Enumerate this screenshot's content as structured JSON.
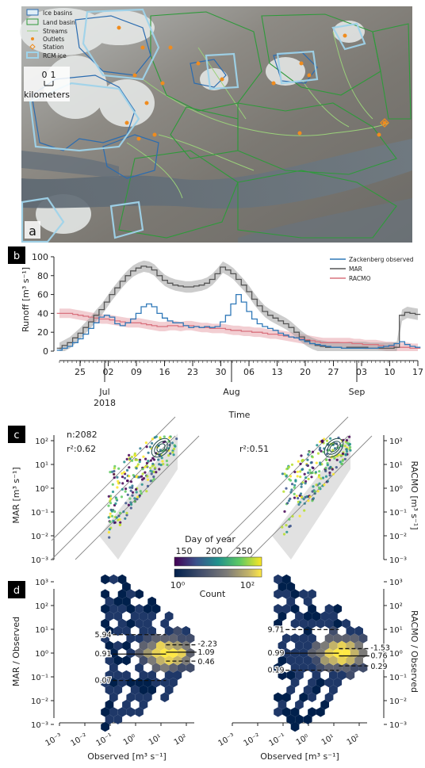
{
  "panel_labels": {
    "a": "a",
    "b": "b",
    "c": "c",
    "d": "d"
  },
  "map": {
    "legend": [
      "Ice basins",
      "Land basin",
      "Streams",
      "Outlets",
      "Station",
      "RCM ice"
    ],
    "scale_ticks": [
      "0",
      "1"
    ],
    "scale_unit": "kilometers",
    "colors": {
      "ice_basin": "#2b6cb0",
      "land_basin": "#2e9a3a",
      "stream": "#9ad07a",
      "outlet": "#f08c1e",
      "rcm_ice": "#9fd3ea"
    }
  },
  "chart_data": [
    {
      "type": "line",
      "ylabel": "Runoff [m³ s⁻¹]",
      "xlabel": "Time",
      "ylim": [
        0,
        105
      ],
      "yticks": [
        "0",
        "20",
        "40",
        "60",
        "80",
        "100"
      ],
      "xticks": [
        "25",
        "02",
        "09",
        "16",
        "23",
        "30",
        "06",
        "13",
        "20",
        "27",
        "03",
        "10",
        "17"
      ],
      "months": [
        "Jul",
        "Aug",
        "Sep"
      ],
      "year": "2018",
      "legend_position": "top-right",
      "colors": {
        "zackenberg": "#2f78b8",
        "mar": "#555555",
        "racmo": "#d9737f"
      },
      "series": [
        {
          "name": "Zackenberg observed",
          "values": [
            1,
            3,
            5,
            9,
            13,
            18,
            24,
            30,
            36,
            38,
            36,
            29,
            27,
            30,
            34,
            40,
            47,
            50,
            47,
            40,
            35,
            32,
            30,
            30,
            27,
            25,
            26,
            25,
            26,
            25,
            26,
            31,
            38,
            50,
            60,
            52,
            42,
            34,
            29,
            26,
            24,
            22,
            19,
            17,
            15,
            14,
            12,
            10,
            8,
            7,
            6,
            5,
            4,
            4,
            3,
            3,
            3,
            3,
            3,
            3,
            3,
            4,
            5,
            6,
            8,
            10,
            7,
            5,
            4
          ]
        },
        {
          "name": "MAR",
          "values": [
            3,
            6,
            9,
            14,
            19,
            25,
            31,
            38,
            44,
            52,
            60,
            67,
            74,
            80,
            85,
            88,
            90,
            89,
            86,
            80,
            75,
            72,
            70,
            69,
            68,
            68,
            69,
            70,
            72,
            76,
            82,
            89,
            86,
            82,
            76,
            70,
            63,
            55,
            48,
            42,
            38,
            35,
            32,
            29,
            25,
            20,
            15,
            11,
            8,
            6,
            5,
            4,
            4,
            4,
            3,
            4,
            4,
            4,
            4,
            3,
            3,
            3,
            3,
            3,
            4,
            38,
            41,
            40,
            39
          ],
          "band": 6
        },
        {
          "name": "RACMO",
          "values": [
            40,
            40,
            40,
            39,
            38,
            37,
            36,
            35,
            34,
            34,
            33,
            32,
            31,
            30,
            30,
            30,
            29,
            28,
            27,
            26,
            26,
            27,
            27,
            26,
            27,
            27,
            26,
            25,
            25,
            24,
            24,
            24,
            23,
            22,
            22,
            21,
            21,
            20,
            20,
            19,
            18,
            18,
            17,
            16,
            15,
            14,
            13,
            12,
            11,
            10,
            9,
            9,
            9,
            9,
            9,
            9,
            8,
            8,
            7,
            7,
            7,
            6,
            5,
            5,
            4,
            4,
            4,
            3,
            3
          ],
          "band": 5
        }
      ]
    },
    {
      "type": "scatter",
      "ylabel_left": "MAR [m³ s⁻¹]",
      "ylabel_right": "RACMO [m³ s⁻¹]",
      "annotations": [
        "n:2082",
        "r²:0.62",
        "r²:0.51"
      ],
      "axis": "log",
      "xlim": [
        "1e-3",
        "1e3"
      ],
      "yticks": [
        "10²",
        "10¹",
        "10⁰",
        "10⁻¹",
        "10⁻²",
        "10⁻³"
      ],
      "colorbar": {
        "label": "Day of year",
        "ticks": [
          "150",
          "200",
          "250"
        ]
      }
    },
    {
      "type": "heatmap",
      "ylabel_left": "MAR / Observed",
      "ylabel_right": "RACMO / Observed",
      "xlabel": "Observed [m³ s⁻¹]",
      "xticks": [
        "10⁻³",
        "10⁻²",
        "10⁻¹",
        "10⁰",
        "10¹",
        "10²"
      ],
      "yticks": [
        "10³",
        "10²",
        "10¹",
        "10⁰",
        "10⁻¹",
        "10⁻²",
        "10⁻³"
      ],
      "colorbar": {
        "label": "Count",
        "ticks": [
          "10⁰",
          "10²"
        ]
      },
      "left_labels": {
        "p95": "5.94",
        "median": "0.91",
        "p5": "0.07",
        "r1": "2.23",
        "r2": "1.09",
        "r3": "0.46"
      },
      "right_labels": {
        "p95": "9.71",
        "median": "0.99",
        "p5": "0.19",
        "r1": "1.53",
        "r2": "0.76",
        "r3": "0.29"
      }
    }
  ]
}
